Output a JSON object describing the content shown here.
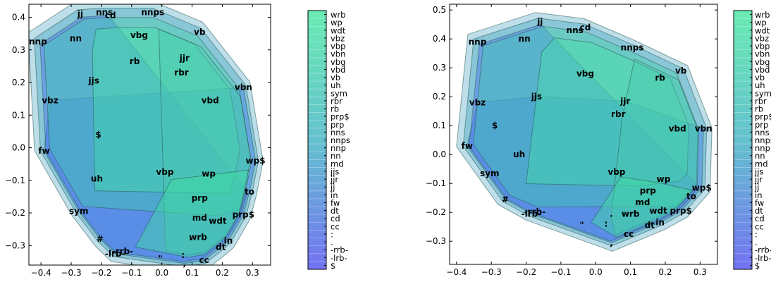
{
  "chart_data": [
    {
      "type": "scatter",
      "title": "",
      "xlabel": "",
      "ylabel": "",
      "xlim": [
        -0.44,
        0.36
      ],
      "ylim": [
        -0.36,
        0.44
      ],
      "xticks": [
        "−0.4",
        "−0.3",
        "−0.2",
        "−0.1",
        "0.0",
        "0.1",
        "0.2",
        "0.3"
      ],
      "yticks": [
        "0.4",
        "0.3",
        "0.2",
        "0.1",
        "0.0",
        "−0.1",
        "−0.2",
        "−0.3"
      ],
      "xtick_values": [
        -0.4,
        -0.3,
        -0.2,
        -0.1,
        0.0,
        0.1,
        0.2,
        0.3
      ],
      "ytick_values": [
        0.4,
        0.3,
        0.2,
        0.1,
        0.0,
        -0.1,
        -0.2,
        -0.3
      ],
      "grid": false,
      "points": [
        {
          "label": "jj",
          "x": -0.27,
          "y": 0.41
        },
        {
          "label": "nns",
          "x": -0.19,
          "y": 0.415
        },
        {
          "label": "cd",
          "x": -0.17,
          "y": 0.405
        },
        {
          "label": "nnps",
          "x": -0.03,
          "y": 0.415
        },
        {
          "label": "nnp",
          "x": -0.41,
          "y": 0.325
        },
        {
          "label": "nn",
          "x": -0.285,
          "y": 0.335
        },
        {
          "label": "vbg",
          "x": -0.075,
          "y": 0.345
        },
        {
          "label": "vb",
          "x": 0.125,
          "y": 0.355
        },
        {
          "label": "rb",
          "x": -0.09,
          "y": 0.265
        },
        {
          "label": "jjr",
          "x": 0.075,
          "y": 0.275
        },
        {
          "label": "rbr",
          "x": 0.065,
          "y": 0.23
        },
        {
          "label": "jjs",
          "x": -0.225,
          "y": 0.205
        },
        {
          "label": "vbn",
          "x": 0.27,
          "y": 0.185
        },
        {
          "label": "vbz",
          "x": -0.37,
          "y": 0.145
        },
        {
          "label": "vbd",
          "x": 0.16,
          "y": 0.145
        },
        {
          "label": "$",
          "x": -0.21,
          "y": 0.04
        },
        {
          "label": "fw",
          "x": -0.39,
          "y": -0.01
        },
        {
          "label": "wp$",
          "x": 0.31,
          "y": -0.04
        },
        {
          "label": "vbp",
          "x": 0.01,
          "y": -0.075
        },
        {
          "label": "wp",
          "x": 0.155,
          "y": -0.08
        },
        {
          "label": "uh",
          "x": -0.215,
          "y": -0.095
        },
        {
          "label": "to",
          "x": 0.29,
          "y": -0.135
        },
        {
          "label": "prp",
          "x": 0.125,
          "y": -0.155
        },
        {
          "label": "sym",
          "x": -0.275,
          "y": -0.195
        },
        {
          "label": "md",
          "x": 0.125,
          "y": -0.215
        },
        {
          "label": "prp$",
          "x": 0.27,
          "y": -0.205
        },
        {
          "label": "wdt",
          "x": 0.185,
          "y": -0.225
        },
        {
          "label": "wrb",
          "x": 0.12,
          "y": -0.275
        },
        {
          "label": "#",
          "x": -0.205,
          "y": -0.28
        },
        {
          "label": "in",
          "x": 0.22,
          "y": -0.285
        },
        {
          "label": "dt",
          "x": 0.195,
          "y": -0.305
        },
        {
          "label": "-lrb-",
          "x": -0.155,
          "y": -0.325
        },
        {
          "label": "-rrb-",
          "x": -0.13,
          "y": -0.318
        },
        {
          "label": "cc",
          "x": 0.14,
          "y": -0.345
        },
        {
          "label": "\"",
          "x": -0.005,
          "y": -0.34
        },
        {
          "label": ":",
          "x": 0.07,
          "y": -0.33
        },
        {
          "label": ".",
          "x": 0.095,
          "y": -0.275
        },
        {
          "label": ",",
          "x": 0.075,
          "y": -0.355
        }
      ]
    },
    {
      "type": "scatter",
      "title": "",
      "xlabel": "",
      "ylabel": "",
      "xlim": [
        -0.42,
        0.35
      ],
      "ylim": [
        -0.38,
        0.52
      ],
      "xticks": [
        "−0.4",
        "−0.3",
        "−0.2",
        "−0.1",
        "0.0",
        "0.1",
        "0.2",
        "0.3"
      ],
      "yticks": [
        "0.5",
        "0.4",
        "0.3",
        "0.2",
        "0.1",
        "0.0",
        "−0.1",
        "−0.2",
        "−0.3"
      ],
      "xtick_values": [
        -0.4,
        -0.3,
        -0.2,
        -0.1,
        0.0,
        0.1,
        0.2,
        0.3
      ],
      "ytick_values": [
        0.5,
        0.4,
        0.3,
        0.2,
        0.1,
        0.0,
        -0.1,
        -0.2,
        -0.3
      ],
      "grid": false,
      "points": [
        {
          "label": "jj",
          "x": -0.16,
          "y": 0.46
        },
        {
          "label": "nns",
          "x": -0.06,
          "y": 0.43
        },
        {
          "label": "cd",
          "x": -0.03,
          "y": 0.44
        },
        {
          "label": "nnp",
          "x": -0.34,
          "y": 0.39
        },
        {
          "label": "nn",
          "x": -0.205,
          "y": 0.4
        },
        {
          "label": "nnps",
          "x": 0.105,
          "y": 0.37
        },
        {
          "label": "vbg",
          "x": -0.03,
          "y": 0.28
        },
        {
          "label": "vb",
          "x": 0.245,
          "y": 0.29
        },
        {
          "label": "rb",
          "x": 0.185,
          "y": 0.265
        },
        {
          "label": "jjs",
          "x": -0.17,
          "y": 0.2
        },
        {
          "label": "vbz",
          "x": -0.34,
          "y": 0.18
        },
        {
          "label": "jjr",
          "x": 0.085,
          "y": 0.185
        },
        {
          "label": "rbr",
          "x": 0.065,
          "y": 0.14
        },
        {
          "label": "$",
          "x": -0.29,
          "y": 0.1
        },
        {
          "label": "vbd",
          "x": 0.235,
          "y": 0.09
        },
        {
          "label": "vbn",
          "x": 0.31,
          "y": 0.09
        },
        {
          "label": "fw",
          "x": -0.37,
          "y": 0.03
        },
        {
          "label": "uh",
          "x": -0.22,
          "y": 0.0
        },
        {
          "label": "vbp",
          "x": 0.06,
          "y": -0.06
        },
        {
          "label": "sym",
          "x": -0.305,
          "y": -0.065
        },
        {
          "label": "wp",
          "x": 0.195,
          "y": -0.085
        },
        {
          "label": "wp$",
          "x": 0.305,
          "y": -0.115
        },
        {
          "label": "prp",
          "x": 0.15,
          "y": -0.125
        },
        {
          "label": "to",
          "x": 0.275,
          "y": -0.145
        },
        {
          "label": "md",
          "x": 0.135,
          "y": -0.165
        },
        {
          "label": "#",
          "x": -0.26,
          "y": -0.155
        },
        {
          "label": "-lrb-",
          "x": -0.185,
          "y": -0.205
        },
        {
          "label": "-rrb-",
          "x": -0.175,
          "y": -0.198
        },
        {
          "label": "wdt",
          "x": 0.18,
          "y": -0.195
        },
        {
          "label": "prp$",
          "x": 0.245,
          "y": -0.195
        },
        {
          "label": "wrb",
          "x": 0.1,
          "y": -0.205
        },
        {
          "label": "in",
          "x": 0.185,
          "y": -0.235
        },
        {
          "label": "dt",
          "x": 0.155,
          "y": -0.245
        },
        {
          "label": "cc",
          "x": 0.095,
          "y": -0.275
        },
        {
          "label": "\"",
          "x": -0.04,
          "y": -0.245
        },
        {
          "label": ":",
          "x": 0.03,
          "y": -0.24
        },
        {
          "label": ".",
          "x": 0.045,
          "y": -0.205
        },
        {
          "label": ",",
          "x": 0.045,
          "y": -0.305
        }
      ]
    }
  ],
  "colorbar_labels": [
    "wrb",
    "wp",
    "wdt",
    "vbz",
    "vbp",
    "vbn",
    "vbg",
    "vbd",
    "vb",
    "uh",
    "sym",
    "rbr",
    "rb",
    "prp$",
    "prp",
    "nns",
    "nnps",
    "nnp",
    "nn",
    "md",
    "jjs",
    "jjr",
    "jj",
    "in",
    "fw",
    "dt",
    "cd",
    "cc",
    ":",
    ".",
    "-rrb-",
    "-lrb-",
    "$"
  ],
  "colors": {
    "colorbar_top": "#4fe8a6",
    "colorbar_bottom": "#5a5af0",
    "fill_green": "#3de0a0",
    "fill_teal": "#4aaec0",
    "fill_blue": "#3f6fe8",
    "fill_violet": "#5a4cf0",
    "outline": "#2a5b56"
  }
}
